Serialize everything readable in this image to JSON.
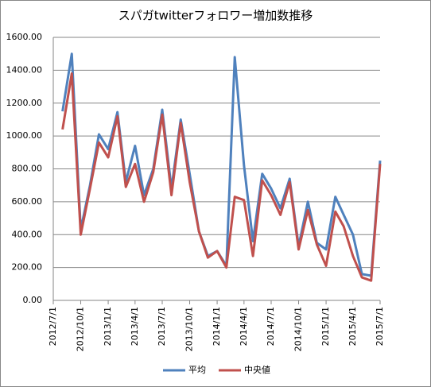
{
  "chart_data": {
    "type": "line",
    "title": "スパガtwitterフォロワー増加数推移",
    "x": [
      "2012/8/1",
      "2012/9/1",
      "2012/10/1",
      "2012/11/1",
      "2012/12/1",
      "2013/1/1",
      "2013/2/1",
      "2013/3/1",
      "2013/4/1",
      "2013/5/1",
      "2013/6/1",
      "2013/7/1",
      "2013/8/1",
      "2013/9/1",
      "2013/10/1",
      "2013/11/1",
      "2013/12/1",
      "2014/1/1",
      "2014/2/1",
      "2014/3/1",
      "2014/4/1",
      "2014/5/1",
      "2014/6/1",
      "2014/7/1",
      "2014/8/1",
      "2014/9/1",
      "2014/10/1",
      "2014/11/1",
      "2014/12/1",
      "2015/1/1",
      "2015/2/1",
      "2015/3/1",
      "2015/4/1",
      "2015/5/1",
      "2015/6/1",
      "2015/7/1"
    ],
    "series": [
      {
        "name": "平均",
        "color": "#4f81bd",
        "values": [
          1150,
          1500,
          430,
          700,
          1010,
          920,
          1145,
          720,
          940,
          640,
          800,
          1160,
          680,
          1100,
          770,
          420,
          270,
          300,
          210,
          1480,
          820,
          360,
          770,
          680,
          560,
          740,
          330,
          600,
          350,
          310,
          630,
          520,
          400,
          160,
          150,
          850
        ]
      },
      {
        "name": "中央値",
        "color": "#c0504d",
        "values": [
          1040,
          1380,
          400,
          680,
          960,
          870,
          1120,
          690,
          830,
          600,
          780,
          1130,
          640,
          1080,
          720,
          420,
          260,
          300,
          200,
          630,
          610,
          270,
          730,
          640,
          520,
          720,
          310,
          550,
          340,
          210,
          540,
          450,
          270,
          140,
          120,
          830
        ]
      }
    ],
    "xlim": [
      "2012/7/1",
      "2015/7/1"
    ],
    "xticks": [
      "2012/7/1",
      "2012/10/1",
      "2013/1/1",
      "2013/4/1",
      "2013/7/1",
      "2013/10/1",
      "2014/1/1",
      "2014/4/1",
      "2014/7/1",
      "2014/10/1",
      "2015/1/1",
      "2015/4/1",
      "2015/7/1"
    ],
    "ylim": [
      0,
      1600
    ],
    "yticks": [
      {
        "value": 0,
        "label": "0.00"
      },
      {
        "value": 200,
        "label": "200.00"
      },
      {
        "value": 400,
        "label": "400.00"
      },
      {
        "value": 600,
        "label": "600.00"
      },
      {
        "value": 800,
        "label": "800.00"
      },
      {
        "value": 1000,
        "label": "1000.00"
      },
      {
        "value": 1200,
        "label": "1200.00"
      },
      {
        "value": 1400,
        "label": "1400.00"
      },
      {
        "value": 1600,
        "label": "1600.00"
      }
    ],
    "grid": true,
    "legend": "bottom"
  }
}
